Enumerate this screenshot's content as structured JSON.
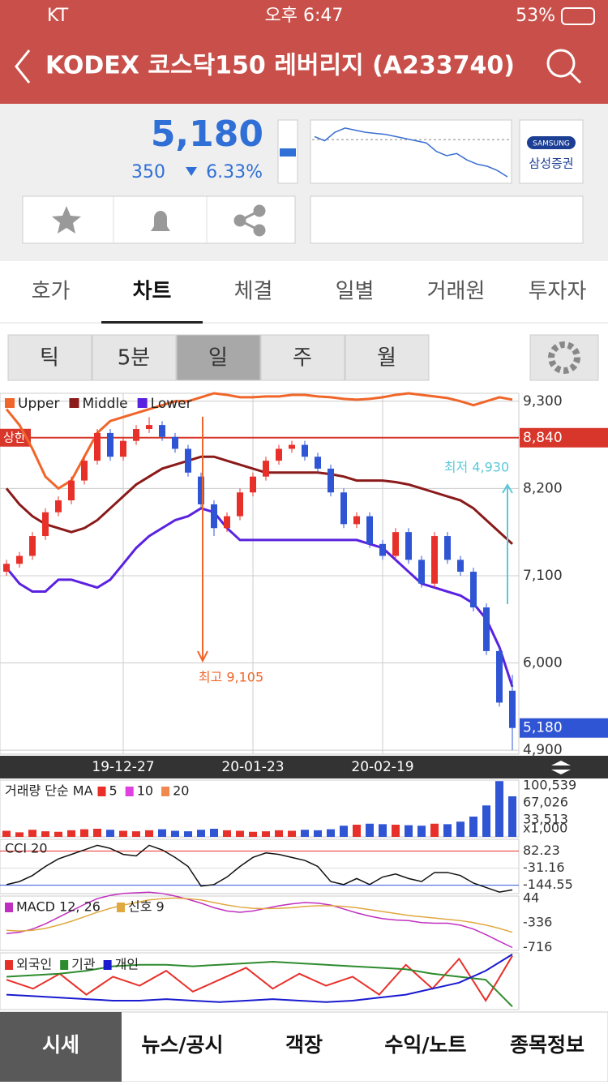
{
  "status_bar": {
    "carrier": "KT",
    "time": "오후 6:47",
    "battery": "53%"
  },
  "header": {
    "title": "KODEX 코스닥150 레버리지 (A233740)"
  },
  "quote": {
    "price": "5,180",
    "change": "350",
    "change_pct": "6.33%",
    "broker_logo": "SAMSUNG",
    "broker": "삼성증권",
    "intraday": {
      "values": [
        5560,
        5520,
        5600,
        5640,
        5620,
        5600,
        5590,
        5580,
        5560,
        5540,
        5520,
        5500,
        5420,
        5380,
        5400,
        5340,
        5300,
        5280,
        5240,
        5180
      ],
      "ref": 5530
    }
  },
  "tabs": [
    "호가",
    "차트",
    "체결",
    "일별",
    "거래원",
    "투자자"
  ],
  "active_tab": 1,
  "periods": [
    "틱",
    "5분",
    "일",
    "주",
    "월"
  ],
  "active_period": 2,
  "chart_data": {
    "type": "candlestick",
    "legend": [
      "Upper",
      "Middle",
      "Lower"
    ],
    "categories": [
      null,
      null,
      null,
      null,
      null,
      null,
      null,
      null,
      null,
      "19-12-27",
      null,
      null,
      null,
      null,
      null,
      null,
      null,
      null,
      null,
      "20-01-23",
      null,
      null,
      null,
      null,
      null,
      null,
      null,
      null,
      null,
      "20-02-19",
      null,
      null,
      null,
      null,
      null,
      null,
      null,
      null,
      null,
      null
    ],
    "open": [
      7150,
      7250,
      7350,
      7600,
      7900,
      8050,
      8300,
      8550,
      8900,
      8600,
      8800,
      8950,
      9000,
      8850,
      8700,
      8350,
      8000,
      7700,
      7850,
      8150,
      8350,
      8550,
      8700,
      8750,
      8600,
      8450,
      8150,
      7750,
      7850,
      7500,
      7350,
      7650,
      7300,
      7000,
      7600,
      7300,
      7150,
      6700,
      6150,
      5650
    ],
    "high": [
      7300,
      7400,
      7650,
      7950,
      8100,
      8350,
      8600,
      8950,
      8950,
      8850,
      9000,
      9100,
      9050,
      8900,
      8750,
      8400,
      8050,
      7900,
      8200,
      8400,
      8600,
      8750,
      8800,
      8800,
      8650,
      8500,
      8200,
      7900,
      7900,
      7550,
      7700,
      7700,
      7350,
      7650,
      7650,
      7350,
      7200,
      6750,
      6200,
      5850
    ],
    "low": [
      7100,
      7200,
      7300,
      7550,
      7850,
      8000,
      8250,
      8500,
      8550,
      8550,
      8750,
      8900,
      8800,
      8650,
      8350,
      7950,
      7600,
      7650,
      7800,
      8100,
      8300,
      8500,
      8650,
      8550,
      8400,
      8100,
      7700,
      7700,
      7450,
      7300,
      7300,
      7250,
      6950,
      6950,
      7250,
      7100,
      6650,
      6100,
      5450,
      4900
    ],
    "close": [
      7250,
      7350,
      7600,
      7900,
      8050,
      8300,
      8550,
      8900,
      8600,
      8800,
      8950,
      9000,
      8850,
      8700,
      8400,
      8000,
      7700,
      7850,
      8150,
      8350,
      8550,
      8700,
      8750,
      8600,
      8450,
      8150,
      7750,
      7850,
      7500,
      7350,
      7650,
      7300,
      7000,
      7600,
      7300,
      7150,
      6700,
      6150,
      5500,
      5180
    ],
    "series": [
      {
        "name": "Upper",
        "color": "#f0662a",
        "values": [
          9200,
          9000,
          8700,
          8350,
          8200,
          8300,
          8600,
          8900,
          9050,
          9100,
          9150,
          9200,
          9250,
          9300,
          9300,
          9350,
          9400,
          9380,
          9350,
          9350,
          9360,
          9360,
          9380,
          9380,
          9360,
          9350,
          9330,
          9320,
          9330,
          9350,
          9380,
          9400,
          9380,
          9360,
          9340,
          9300,
          9250,
          9300,
          9350,
          9320
        ]
      },
      {
        "name": "Middle",
        "color": "#8b1a1a",
        "values": [
          8200,
          8000,
          7850,
          7750,
          7700,
          7650,
          7700,
          7800,
          7950,
          8100,
          8250,
          8350,
          8450,
          8500,
          8550,
          8600,
          8600,
          8550,
          8500,
          8450,
          8400,
          8400,
          8400,
          8400,
          8400,
          8380,
          8350,
          8300,
          8300,
          8300,
          8280,
          8250,
          8200,
          8150,
          8100,
          8050,
          7950,
          7800,
          7650,
          7500
        ]
      },
      {
        "name": "Lower",
        "color": "#5a22e0",
        "values": [
          7200,
          7000,
          6900,
          6900,
          7050,
          7050,
          7000,
          6950,
          7050,
          7250,
          7450,
          7600,
          7700,
          7800,
          7850,
          7950,
          7900,
          7700,
          7550,
          7550,
          7550,
          7550,
          7550,
          7550,
          7550,
          7550,
          7550,
          7550,
          7500,
          7450,
          7300,
          7150,
          7000,
          6950,
          6900,
          6850,
          6750,
          6550,
          6200,
          5700
        ]
      }
    ],
    "up_color": "#e8302a",
    "down_color": "#2f55d4",
    "ylim": [
      4850,
      9400
    ],
    "yticks": [
      {
        "value": 9300,
        "label": "9,300"
      },
      {
        "value": 8200,
        "label": "8,200"
      },
      {
        "value": 7100,
        "label": "7,100"
      },
      {
        "value": 6000,
        "label": "6,000"
      },
      {
        "value": 4900,
        "label": "4,900"
      }
    ],
    "limit": {
      "label": "상한",
      "value": 8840,
      "value_label": "8,840"
    },
    "current": {
      "value": 5180,
      "label": "5,180"
    },
    "annotations": {
      "high": "최고 9,105",
      "low": "최저 4,930"
    }
  },
  "volume": {
    "title": "거래량 단순 MA",
    "ma": [
      "5",
      "10",
      "20"
    ],
    "ma_colors": [
      "#e8302a",
      "#e040e0",
      "#f08850"
    ],
    "values": [
      12000,
      9000,
      14000,
      11000,
      10000,
      13000,
      15000,
      16000,
      14000,
      12000,
      11000,
      13000,
      15000,
      12000,
      11000,
      14000,
      16000,
      13000,
      12000,
      10000,
      11000,
      13000,
      12000,
      14000,
      13000,
      15000,
      22000,
      24000,
      26000,
      25000,
      24000,
      23000,
      22000,
      26000,
      25000,
      30000,
      40000,
      62000,
      110000,
      80000
    ],
    "ylim": [
      0,
      112000
    ],
    "yticks": [
      {
        "value": 100539,
        "label": "100,539"
      },
      {
        "value": 67026,
        "label": "67,026"
      },
      {
        "value": 33513,
        "label": "33,513"
      }
    ],
    "unit": "x1,000"
  },
  "cci": {
    "title": "CCI 20",
    "values": [
      -140,
      -120,
      -80,
      -20,
      30,
      60,
      90,
      120,
      100,
      60,
      50,
      120,
      90,
      40,
      -20,
      -150,
      -140,
      -90,
      -20,
      40,
      70,
      60,
      40,
      20,
      -20,
      -120,
      -140,
      -100,
      -140,
      -90,
      -70,
      -100,
      -120,
      -60,
      -60,
      -80,
      -130,
      -160,
      -190,
      -175
    ],
    "ylim": [
      -200,
      160
    ],
    "yticks": [
      82.23,
      -31.16,
      -144.55
    ]
  },
  "macd": {
    "title": "MACD 12, 26",
    "signal_title": "신호 9",
    "series": [
      {
        "name": "MACD",
        "color": "#c030c0",
        "values": [
          -500,
          -480,
          -430,
          -350,
          -250,
          -150,
          -50,
          40,
          90,
          120,
          130,
          140,
          120,
          80,
          30,
          -30,
          -100,
          -150,
          -170,
          -150,
          -110,
          -70,
          -40,
          -20,
          -30,
          -60,
          -120,
          -180,
          -230,
          -270,
          -290,
          -300,
          -330,
          -340,
          -340,
          -370,
          -430,
          -520,
          -620,
          -716
        ]
      },
      {
        "name": "신호 9",
        "color": "#e0a840",
        "values": [
          -450,
          -460,
          -450,
          -420,
          -370,
          -310,
          -240,
          -170,
          -110,
          -60,
          -20,
          20,
          40,
          50,
          40,
          20,
          -20,
          -60,
          -90,
          -110,
          -115,
          -110,
          -100,
          -80,
          -70,
          -70,
          -80,
          -100,
          -130,
          -160,
          -190,
          -220,
          -240,
          -260,
          -280,
          -300,
          -330,
          -370,
          -420,
          -480
        ]
      }
    ],
    "ylim": [
      -760,
      80
    ],
    "yticks": [
      44,
      -336,
      -716
    ]
  },
  "investor": {
    "series": [
      {
        "name": "외국인",
        "color": "#e8302a",
        "values": [
          10,
          -20,
          30,
          -40,
          20,
          -10,
          40,
          -30,
          10,
          50,
          -20,
          30,
          -10,
          20,
          -40,
          60,
          -20,
          80,
          -60,
          90
        ]
      },
      {
        "name": "기관",
        "color": "#2e8b2e",
        "values": [
          20,
          25,
          30,
          40,
          55,
          60,
          60,
          55,
          60,
          65,
          70,
          65,
          60,
          55,
          50,
          45,
          30,
          20,
          10,
          -80
        ]
      },
      {
        "name": "개인",
        "color": "#1a1ad0",
        "values": [
          -40,
          -45,
          -50,
          -55,
          -60,
          -60,
          -55,
          -60,
          -65,
          -60,
          -55,
          -60,
          -65,
          -60,
          -50,
          -40,
          -20,
          0,
          40,
          95
        ]
      }
    ],
    "ylim": [
      -90,
      100
    ]
  },
  "bottom_nav": [
    "시세",
    "뉴스/공시",
    "객장",
    "수익/노트",
    "종목정보"
  ],
  "active_nav": 0
}
